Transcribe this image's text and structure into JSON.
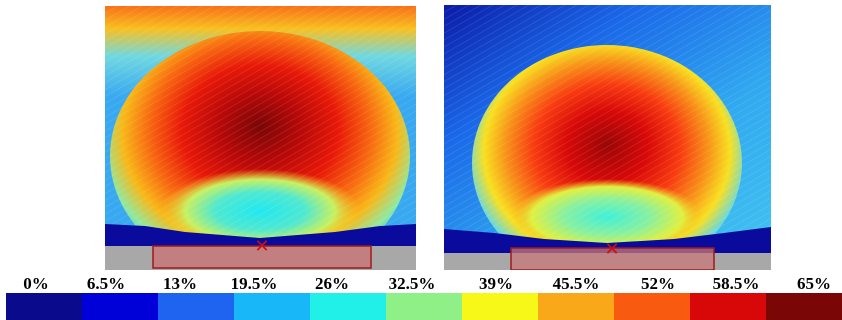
{
  "legend": {
    "ticks": [
      "0%",
      "6.5%",
      "13%",
      "19.5%",
      "26%",
      "32.5%",
      "39%",
      "45.5%",
      "52%",
      "58.5%",
      "65%"
    ],
    "colors": [
      "#0a0a8c",
      "#0000d8",
      "#1e64f0",
      "#18b8f8",
      "#20f0e8",
      "#90f088",
      "#f8f818",
      "#f8a818",
      "#f85a10",
      "#d80808",
      "#7a0606"
    ]
  },
  "panels": [
    {
      "name": "left-heatmap",
      "background": "#a8a8a8",
      "top_color": "#f87a18"
    },
    {
      "name": "right-heatmap",
      "background": "#a8a8a8",
      "top_color": "#0a1aa8"
    }
  ],
  "marker": {
    "symbol": "✕",
    "color": "#c81010",
    "box_fill": "#c87878",
    "box_stroke": "#a01818"
  }
}
